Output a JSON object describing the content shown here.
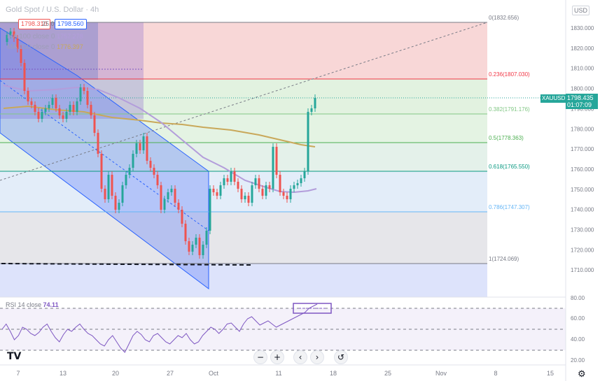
{
  "chart_title": "Gold Spot / U.S. Dollar · 4h",
  "currency_badge": "USD",
  "bid_price": "1798.310",
  "spread": "25.0",
  "ask_price": "1798.560",
  "ma100_label": "MA 100 close 0",
  "ma100_value": "1757.278",
  "ma200_label": "MA 200 close 0",
  "ma200_value": "1776.397",
  "symbol_tag": "XAUUSD",
  "last_price": "1798.435",
  "countdown": "01:07:09",
  "rsi_label": "RSI 14 close",
  "rsi_value": "74.11",
  "fib_levels": [
    {
      "label": "0(1832.656)",
      "color": "#787b86"
    },
    {
      "label": "0.236(1807.030)",
      "color": "#f23645"
    },
    {
      "label": "0.382(1791.176)",
      "color": "#81c784"
    },
    {
      "label": "0.5(1778.363)",
      "color": "#4caf50"
    },
    {
      "label": "0.618(1765.550)",
      "color": "#089981"
    },
    {
      "label": "0.786(1747.307)",
      "color": "#64b5f6"
    },
    {
      "label": "1(1724.069)",
      "color": "#787b86"
    }
  ],
  "price_axis": [
    "1830.000",
    "1820.000",
    "1810.000",
    "1800.000",
    "1790.000",
    "1780.000",
    "1770.000",
    "1760.000",
    "1750.000",
    "1740.000",
    "1730.000",
    "1720.000",
    "1710.000"
  ],
  "rsi_axis": [
    "80.00",
    "60.00",
    "40.00",
    "20.00"
  ],
  "time_axis": [
    "7",
    "13",
    "20",
    "27",
    "Oct",
    "11",
    "18",
    "25",
    "Nov",
    "8",
    "15"
  ],
  "colors": {
    "up": "#26a69a",
    "down": "#ef5350",
    "ma100": "#b39ddb",
    "ma200": "#c9a85a",
    "rsi": "#7e57c2",
    "channel": "#2962ff"
  },
  "controls": {
    "zoom_out": "−",
    "zoom_in": "+",
    "back": "‹",
    "forward": "›",
    "reset": "↺"
  },
  "logo": "TV",
  "gear": "⚙"
}
